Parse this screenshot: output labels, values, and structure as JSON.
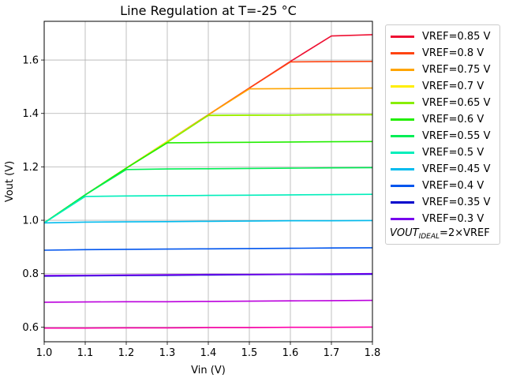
{
  "chart_data": {
    "type": "line",
    "title": "Line Regulation at T=-25 °C",
    "xlabel": "Vin (V)",
    "ylabel": "Vout (V)",
    "xlim": [
      1.0,
      1.8
    ],
    "ylim": [
      0.545,
      1.745
    ],
    "xticks": [
      "1.0",
      "1.1",
      "1.2",
      "1.3",
      "1.4",
      "1.5",
      "1.6",
      "1.7",
      "1.8"
    ],
    "yticks": [
      "0.6",
      "0.8",
      "1.0",
      "1.2",
      "1.4",
      "1.6"
    ],
    "grid": true,
    "legend_position": "outside-right",
    "x": [
      1.0,
      1.1,
      1.2,
      1.3,
      1.4,
      1.5,
      1.6,
      1.7,
      1.8
    ],
    "series": [
      {
        "name": "VREF=0.85 V",
        "color": "#ee1133",
        "values": [
          0.99,
          1.095,
          1.195,
          1.295,
          1.395,
          1.495,
          1.595,
          1.69,
          1.695
        ]
      },
      {
        "name": "VREF=0.8 V",
        "color": "#ff4411",
        "values": [
          0.99,
          1.095,
          1.195,
          1.295,
          1.395,
          1.495,
          1.593,
          1.594,
          1.595
        ]
      },
      {
        "name": "VREF=0.75 V",
        "color": "#ffa500",
        "values": [
          0.99,
          1.095,
          1.195,
          1.295,
          1.395,
          1.492,
          1.493,
          1.494,
          1.495
        ]
      },
      {
        "name": "VREF=0.7 V",
        "color": "#ffee00",
        "values": [
          0.99,
          1.095,
          1.195,
          1.295,
          1.392,
          1.393,
          1.394,
          1.395,
          1.396
        ]
      },
      {
        "name": "VREF=0.65 V",
        "color": "#88ee00",
        "values": [
          0.99,
          1.095,
          1.195,
          1.292,
          1.393,
          1.394,
          1.394,
          1.395,
          1.395
        ]
      },
      {
        "name": "VREF=0.6 V",
        "color": "#22ee00",
        "values": [
          0.99,
          1.095,
          1.195,
          1.29,
          1.291,
          1.292,
          1.293,
          1.294,
          1.295
        ]
      },
      {
        "name": "VREF=0.55 V",
        "color": "#00ee55",
        "values": [
          0.99,
          1.095,
          1.19,
          1.192,
          1.193,
          1.194,
          1.195,
          1.196,
          1.197
        ]
      },
      {
        "name": "VREF=0.5 V",
        "color": "#00eebb",
        "values": [
          0.99,
          1.089,
          1.091,
          1.092,
          1.093,
          1.094,
          1.095,
          1.096,
          1.097
        ]
      },
      {
        "name": "VREF=0.45 V",
        "color": "#00bbee",
        "values": [
          0.99,
          0.993,
          0.994,
          0.995,
          0.996,
          0.997,
          0.998,
          0.998,
          0.999
        ]
      },
      {
        "name": "VREF=0.4 V",
        "color": "#0055ee",
        "values": [
          0.888,
          0.89,
          0.891,
          0.892,
          0.893,
          0.894,
          0.895,
          0.896,
          0.897
        ]
      },
      {
        "name": "VREF=0.35 V",
        "color": "#0000cc",
        "values": [
          0.791,
          0.792,
          0.793,
          0.794,
          0.795,
          0.796,
          0.797,
          0.797,
          0.798
        ]
      },
      {
        "name": "VREF=0.3 V",
        "color": "#7700ee",
        "values": [
          0.793,
          0.794,
          0.795,
          0.796,
          0.797,
          0.797,
          0.798,
          0.799,
          0.8
        ]
      },
      {
        "name": "",
        "color": "#bb00dd",
        "values": [
          0.693,
          0.694,
          0.695,
          0.695,
          0.696,
          0.697,
          0.698,
          0.699,
          0.7
        ]
      },
      {
        "name": "",
        "color": "#ff00aa",
        "values": [
          0.596,
          0.596,
          0.597,
          0.597,
          0.598,
          0.598,
          0.599,
          0.599,
          0.6
        ]
      }
    ],
    "annotation": {
      "text_main": "VOUT",
      "text_sub": "IDEAL",
      "text_rest": "=2×VREF"
    }
  }
}
